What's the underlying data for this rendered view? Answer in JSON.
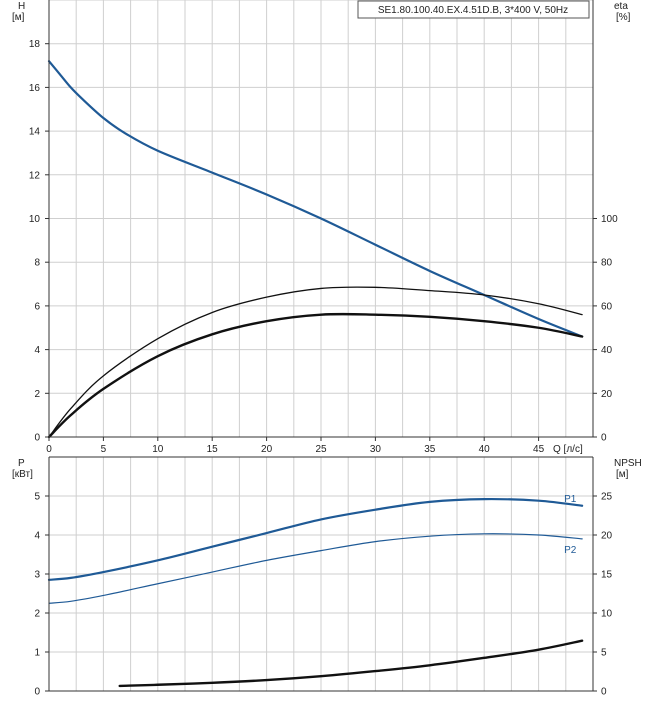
{
  "header": {
    "title": "SE1.80.100.40.EX.4.51D.B, 3*400 V, 50Hz"
  },
  "colors": {
    "blue": "#1f5a96",
    "black": "#111111",
    "grid": "#cfcfcf"
  },
  "chart_data": [
    {
      "type": "line",
      "panel": "top",
      "x_label": "Q [л/с]",
      "left_axis_label": [
        "H",
        "[м]"
      ],
      "right_axis_label": [
        "eta",
        "[%]"
      ],
      "xlim": [
        0,
        50
      ],
      "x_ticks": [
        0,
        5,
        10,
        15,
        20,
        25,
        30,
        35,
        40,
        45
      ],
      "ylim": [
        0,
        20
      ],
      "y_ticks": [
        0,
        2,
        4,
        6,
        8,
        10,
        12,
        14,
        16,
        18
      ],
      "y2lim": [
        0,
        200
      ],
      "y2_ticks": [
        0,
        20,
        40,
        60,
        80,
        100
      ],
      "grid": true,
      "series": [
        {
          "axis": "left",
          "color": "blue",
          "width": 2.2,
          "x": [
            0,
            1,
            2,
            3,
            5,
            7,
            10,
            15,
            20,
            25,
            30,
            35,
            40,
            45,
            49
          ],
          "y": [
            17.2,
            16.6,
            16.0,
            15.5,
            14.6,
            13.9,
            13.1,
            12.1,
            11.1,
            10.0,
            8.8,
            7.6,
            6.5,
            5.4,
            4.6
          ]
        },
        {
          "axis": "right",
          "color": "black",
          "width": 1.3,
          "x": [
            0,
            2,
            5,
            10,
            15,
            20,
            25,
            30,
            35,
            40,
            45,
            49
          ],
          "y": [
            0,
            13,
            28,
            45,
            57,
            64,
            68,
            68.5,
            67,
            65,
            61,
            56
          ]
        },
        {
          "axis": "right",
          "color": "black",
          "width": 2.4,
          "x": [
            0,
            2,
            5,
            10,
            15,
            20,
            25,
            30,
            35,
            40,
            45,
            49
          ],
          "y": [
            0,
            10,
            22,
            37,
            47,
            53,
            56,
            56,
            55,
            53,
            50,
            46
          ]
        }
      ]
    },
    {
      "type": "line",
      "panel": "bottom",
      "left_axis_label": [
        "P",
        "[кВт]"
      ],
      "right_axis_label": [
        "NPSH",
        "[м]"
      ],
      "xlim": [
        0,
        50
      ],
      "ylim": [
        0,
        6
      ],
      "y_ticks": [
        0,
        1,
        2,
        3,
        4,
        5
      ],
      "y2lim": [
        0,
        30
      ],
      "y2_ticks": [
        0,
        5,
        10,
        15,
        20,
        25
      ],
      "grid": true,
      "series": [
        {
          "name": "P1",
          "axis": "left",
          "color": "blue",
          "width": 2.2,
          "x": [
            0,
            2,
            5,
            10,
            15,
            20,
            25,
            30,
            35,
            40,
            45,
            49
          ],
          "y": [
            2.85,
            2.9,
            3.05,
            3.35,
            3.7,
            4.05,
            4.4,
            4.65,
            4.85,
            4.92,
            4.88,
            4.75
          ]
        },
        {
          "name": "P2",
          "axis": "left",
          "color": "blue",
          "width": 1.2,
          "x": [
            0,
            2,
            5,
            10,
            15,
            20,
            25,
            30,
            35,
            40,
            45,
            49
          ],
          "y": [
            2.25,
            2.3,
            2.45,
            2.75,
            3.05,
            3.35,
            3.6,
            3.83,
            3.97,
            4.03,
            4.0,
            3.9
          ]
        },
        {
          "name": "",
          "axis": "right",
          "color": "black",
          "width": 2.4,
          "x": [
            6.5,
            10,
            15,
            20,
            25,
            30,
            35,
            40,
            45,
            49
          ],
          "y": [
            0.65,
            0.8,
            1.05,
            1.4,
            1.9,
            2.55,
            3.3,
            4.25,
            5.3,
            6.45
          ]
        }
      ]
    }
  ]
}
